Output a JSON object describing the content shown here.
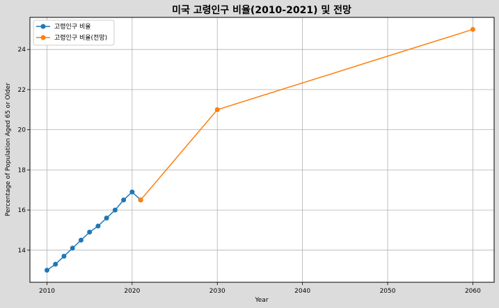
{
  "chart_data": {
    "type": "line",
    "title": "미국 고령인구 비율(2010-2021) 및 전망",
    "xlabel": "Year",
    "ylabel": "Percentage of Population Aged 65 or Older",
    "xlim": [
      2008,
      2062.5
    ],
    "ylim": [
      12.4,
      25.6
    ],
    "xticks": [
      2010,
      2020,
      2030,
      2040,
      2050,
      2060
    ],
    "yticks": [
      14,
      16,
      18,
      20,
      22,
      24
    ],
    "grid": true,
    "legend_position": "top-left",
    "series": [
      {
        "name": "고령인구 비율",
        "color": "#1f77b4",
        "x": [
          2010,
          2011,
          2012,
          2013,
          2014,
          2015,
          2016,
          2017,
          2018,
          2019,
          2020,
          2021
        ],
        "y": [
          13.0,
          13.3,
          13.7,
          14.1,
          14.5,
          14.9,
          15.2,
          15.6,
          16.0,
          16.5,
          16.9,
          16.5
        ]
      },
      {
        "name": "고령인구 비율(전망)",
        "color": "#ff7f0e",
        "x": [
          2021,
          2030,
          2060
        ],
        "y": [
          16.5,
          21.0,
          25.0
        ]
      }
    ]
  }
}
